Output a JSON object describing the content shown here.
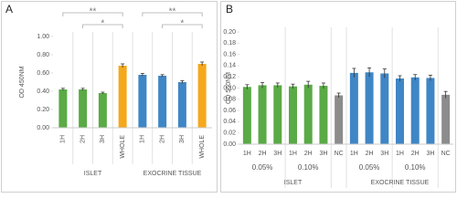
{
  "chart_data": [
    {
      "type": "bar",
      "panel": "A",
      "ylabel": "OD 450NM",
      "ylim": [
        0,
        1
      ],
      "yticks": [
        {
          "value": 0,
          "label": "0.00"
        },
        {
          "value": 0.2,
          "label": "0.20"
        },
        {
          "value": 0.4,
          "label": "0.40"
        },
        {
          "value": 0.6,
          "label": "0.60"
        },
        {
          "value": 0.8,
          "label": "0.80"
        },
        {
          "value": 1,
          "label": "1.00"
        }
      ],
      "groups": [
        {
          "label": "ISLET",
          "categories": [
            "1H",
            "2H",
            "3H",
            "WHOLE"
          ],
          "values": [
            0.42,
            0.42,
            0.38,
            0.68
          ],
          "errors": [
            0.012,
            0.012,
            0.01,
            0.02
          ],
          "colors": [
            "#5aaa46",
            "#5aaa46",
            "#5aaa46",
            "#f5a81c"
          ],
          "brackets": [
            {
              "label": "**",
              "from": "1H",
              "to": "WHOLE"
            },
            {
              "label": "*",
              "from": "2H",
              "to": "WHOLE"
            }
          ]
        },
        {
          "label": "EXOCRINE TISSUE",
          "categories": [
            "1H",
            "2H",
            "3H",
            "WHOLE"
          ],
          "values": [
            0.58,
            0.57,
            0.5,
            0.7
          ],
          "errors": [
            0.015,
            0.012,
            0.015,
            0.02
          ],
          "colors": [
            "#3f86c6",
            "#3f86c6",
            "#3f86c6",
            "#f5a81c"
          ],
          "brackets": [
            {
              "label": "**",
              "from": "1H",
              "to": "WHOLE"
            },
            {
              "label": "*",
              "from": "2H",
              "to": "WHOLE"
            }
          ]
        }
      ]
    },
    {
      "type": "bar",
      "panel": "B",
      "ylabel": "OD 560NM",
      "ylim": [
        0,
        0.2
      ],
      "yticks": [
        {
          "value": 0,
          "label": "0.00"
        },
        {
          "value": 0.02,
          "label": "0.02"
        },
        {
          "value": 0.04,
          "label": "0.04"
        },
        {
          "value": 0.06,
          "label": "0.06"
        },
        {
          "value": 0.08,
          "label": "0.08"
        },
        {
          "value": 0.1,
          "label": "0.10"
        },
        {
          "value": 0.12,
          "label": "0.12"
        },
        {
          "value": 0.14,
          "label": "0.14"
        },
        {
          "value": 0.16,
          "label": "0.16"
        },
        {
          "value": 0.18,
          "label": "0.18"
        },
        {
          "value": 0.2,
          "label": "0.20"
        }
      ],
      "groups": [
        {
          "label": "ISLET",
          "subgroups": [
            {
              "label": "0.05%",
              "categories": [
                "1H",
                "2H",
                "3H"
              ],
              "values": [
                0.102,
                0.105,
                0.105
              ],
              "errors": [
                0.004,
                0.005,
                0.004
              ],
              "colors": [
                "#5aaa46",
                "#5aaa46",
                "#5aaa46"
              ]
            },
            {
              "label": "0.10%",
              "categories": [
                "1H",
                "2H",
                "3H"
              ],
              "values": [
                0.103,
                0.106,
                0.104
              ],
              "errors": [
                0.004,
                0.006,
                0.005
              ],
              "colors": [
                "#5aaa46",
                "#5aaa46",
                "#5aaa46"
              ]
            },
            {
              "categories": [
                "NC"
              ],
              "values": [
                0.087
              ],
              "errors": [
                0.004
              ],
              "colors": [
                "#8c8c8c"
              ]
            }
          ]
        },
        {
          "label": "EXOCRINE TISSUE",
          "subgroups": [
            {
              "label": "0.05%",
              "categories": [
                "1H",
                "2H",
                "3H"
              ],
              "values": [
                0.127,
                0.128,
                0.126
              ],
              "errors": [
                0.008,
                0.008,
                0.008
              ],
              "colors": [
                "#3f86c6",
                "#3f86c6",
                "#3f86c6"
              ]
            },
            {
              "label": "0.10%",
              "categories": [
                "1H",
                "2H",
                "3H"
              ],
              "values": [
                0.117,
                0.119,
                0.118
              ],
              "errors": [
                0.005,
                0.005,
                0.005
              ],
              "colors": [
                "#3f86c6",
                "#3f86c6",
                "#3f86c6"
              ]
            },
            {
              "categories": [
                "NC"
              ],
              "values": [
                0.088
              ],
              "errors": [
                0.006
              ],
              "colors": [
                "#8c8c8c"
              ]
            }
          ]
        }
      ]
    }
  ]
}
